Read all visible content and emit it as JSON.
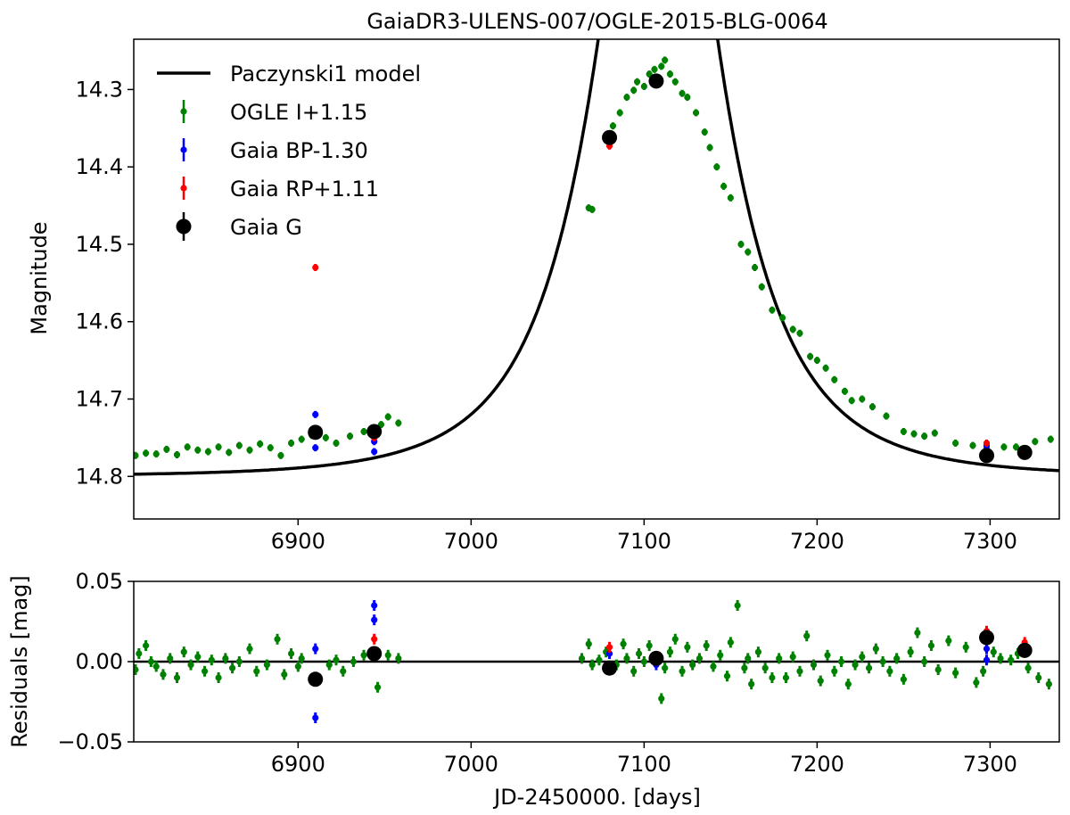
{
  "chart_data": [
    {
      "type": "scatter",
      "panel": "light-curve",
      "title": "GaiaDR3-ULENS-007/OGLE-2015-BLG-0064",
      "xlabel": "",
      "ylabel": "Magnitude",
      "xlim": [
        6805,
        7340
      ],
      "ylim": [
        14.855,
        14.235
      ],
      "y_inverted": true,
      "xticks": [
        6900,
        7000,
        7100,
        7200,
        7300
      ],
      "yticks": [
        14.3,
        14.4,
        14.5,
        14.6,
        14.7,
        14.8
      ],
      "xtick_labels": [
        "6900",
        "7000",
        "7100",
        "7200",
        "7300"
      ],
      "ytick_labels": [
        "14.3",
        "14.4",
        "14.5",
        "14.6",
        "14.7",
        "14.8"
      ],
      "legend_position": "upper-left",
      "grid": false,
      "model": {
        "name": "Paczynski1 model",
        "color": "#000000",
        "t0": 7108,
        "tE": 60,
        "u0": 0.395,
        "mbase": 14.8
      },
      "series": [
        {
          "name": "OGLE I+1.15",
          "color": "#008000",
          "marker": "small-dot-with-errorbar",
          "points": [
            [
              6806,
              14.773
            ],
            [
              6812,
              14.77
            ],
            [
              6818,
              14.771
            ],
            [
              6824,
              14.765
            ],
            [
              6830,
              14.772
            ],
            [
              6836,
              14.762
            ],
            [
              6842,
              14.766
            ],
            [
              6848,
              14.768
            ],
            [
              6854,
              14.762
            ],
            [
              6860,
              14.769
            ],
            [
              6866,
              14.76
            ],
            [
              6872,
              14.766
            ],
            [
              6878,
              14.758
            ],
            [
              6884,
              14.763
            ],
            [
              6890,
              14.773
            ],
            [
              6896,
              14.757
            ],
            [
              6902,
              14.752
            ],
            [
              6908,
              14.747
            ],
            [
              6916,
              14.75
            ],
            [
              6922,
              14.757
            ],
            [
              6930,
              14.748
            ],
            [
              6938,
              14.742
            ],
            [
              6948,
              14.733
            ],
            [
              6952,
              14.723
            ],
            [
              6958,
              14.731
            ],
            [
              7068,
              14.453
            ],
            [
              7070,
              14.455
            ],
            [
              7078,
              14.365
            ],
            [
              7082,
              14.347
            ],
            [
              7086,
              14.33
            ],
            [
              7090,
              14.31
            ],
            [
              7094,
              14.301
            ],
            [
              7096,
              14.29
            ],
            [
              7100,
              14.296
            ],
            [
              7103,
              14.28
            ],
            [
              7106,
              14.274
            ],
            [
              7110,
              14.27
            ],
            [
              7112,
              14.262
            ],
            [
              7115,
              14.28
            ],
            [
              7118,
              14.29
            ],
            [
              7122,
              14.305
            ],
            [
              7125,
              14.31
            ],
            [
              7130,
              14.33
            ],
            [
              7135,
              14.355
            ],
            [
              7138,
              14.375
            ],
            [
              7142,
              14.4
            ],
            [
              7146,
              14.425
            ],
            [
              7150,
              14.44
            ],
            [
              7156,
              14.5
            ],
            [
              7160,
              14.51
            ],
            [
              7164,
              14.53
            ],
            [
              7168,
              14.555
            ],
            [
              7174,
              14.585
            ],
            [
              7180,
              14.595
            ],
            [
              7186,
              14.61
            ],
            [
              7190,
              14.615
            ],
            [
              7196,
              14.645
            ],
            [
              7200,
              14.65
            ],
            [
              7205,
              14.66
            ],
            [
              7210,
              14.675
            ],
            [
              7216,
              14.69
            ],
            [
              7220,
              14.702
            ],
            [
              7226,
              14.7
            ],
            [
              7232,
              14.71
            ],
            [
              7240,
              14.722
            ],
            [
              7250,
              14.742
            ],
            [
              7256,
              14.745
            ],
            [
              7262,
              14.748
            ],
            [
              7268,
              14.744
            ],
            [
              7280,
              14.757
            ],
            [
              7290,
              14.76
            ],
            [
              7298,
              14.763
            ],
            [
              7308,
              14.762
            ],
            [
              7315,
              14.762
            ],
            [
              7326,
              14.755
            ],
            [
              7335,
              14.752
            ]
          ]
        },
        {
          "name": "Gaia BP-1.30",
          "color": "#0000ff",
          "marker": "small-dot-with-errorbar",
          "points": [
            [
              6910,
              14.72
            ],
            [
              6910,
              14.763
            ],
            [
              6944,
              14.755
            ],
            [
              6944,
              14.768
            ],
            [
              7080,
              14.365
            ],
            [
              7298,
              14.76
            ]
          ]
        },
        {
          "name": "Gaia RP+1.11",
          "color": "#ff0000",
          "marker": "small-dot-with-errorbar",
          "points": [
            [
              6910,
              14.53
            ],
            [
              6944,
              14.75
            ],
            [
              7080,
              14.373
            ],
            [
              7298,
              14.757
            ],
            [
              7320,
              14.768
            ]
          ]
        },
        {
          "name": "Gaia G",
          "color": "#000000",
          "marker": "large-dot-with-errorbar",
          "points": [
            [
              6910,
              14.743
            ],
            [
              6944,
              14.742
            ],
            [
              7080,
              14.362
            ],
            [
              7107,
              14.289
            ],
            [
              7298,
              14.773
            ],
            [
              7320,
              14.769
            ]
          ]
        }
      ]
    },
    {
      "type": "scatter",
      "panel": "residuals",
      "title": "",
      "xlabel": "JD-2450000. [days]",
      "ylabel": "Residuals [mag]",
      "xlim": [
        6805,
        7340
      ],
      "ylim": [
        -0.05,
        0.05
      ],
      "xticks": [
        6900,
        7000,
        7100,
        7200,
        7300
      ],
      "yticks": [
        -0.05,
        0.0,
        0.05
      ],
      "xtick_labels": [
        "6900",
        "7000",
        "7100",
        "7200",
        "7300"
      ],
      "ytick_labels": [
        "−0.05",
        "0.00",
        "0.05"
      ],
      "zero_line": 0,
      "grid": false,
      "series": [
        {
          "name": "OGLE I+1.15",
          "color": "#008000",
          "points": [
            [
              6806,
              -0.005
            ],
            [
              6808,
              0.005
            ],
            [
              6812,
              0.01
            ],
            [
              6815,
              0.0
            ],
            [
              6818,
              -0.003
            ],
            [
              6822,
              -0.008
            ],
            [
              6826,
              0.002
            ],
            [
              6830,
              -0.01
            ],
            [
              6834,
              0.006
            ],
            [
              6838,
              -0.002
            ],
            [
              6842,
              0.003
            ],
            [
              6846,
              -0.006
            ],
            [
              6850,
              0.001
            ],
            [
              6854,
              -0.01
            ],
            [
              6858,
              0.002
            ],
            [
              6862,
              -0.004
            ],
            [
              6866,
              0.0
            ],
            [
              6872,
              0.008
            ],
            [
              6876,
              -0.006
            ],
            [
              6882,
              -0.002
            ],
            [
              6888,
              0.014
            ],
            [
              6892,
              -0.008
            ],
            [
              6896,
              0.005
            ],
            [
              6900,
              -0.003
            ],
            [
              6902,
              0.002
            ],
            [
              6918,
              -0.002
            ],
            [
              6922,
              0.001
            ],
            [
              6926,
              -0.006
            ],
            [
              6932,
              0.0
            ],
            [
              6938,
              0.004
            ],
            [
              6946,
              -0.016
            ],
            [
              6952,
              0.004
            ],
            [
              6958,
              0.002
            ],
            [
              7064,
              0.002
            ],
            [
              7068,
              0.011
            ],
            [
              7070,
              -0.002
            ],
            [
              7074,
              0.001
            ],
            [
              7078,
              0.006
            ],
            [
              7084,
              -0.002
            ],
            [
              7088,
              0.011
            ],
            [
              7090,
              0.002
            ],
            [
              7094,
              -0.006
            ],
            [
              7097,
              0.005
            ],
            [
              7100,
              0.0
            ],
            [
              7103,
              0.01
            ],
            [
              7110,
              -0.023
            ],
            [
              7112,
              -0.004
            ],
            [
              7115,
              0.006
            ],
            [
              7118,
              0.014
            ],
            [
              7122,
              -0.006
            ],
            [
              7125,
              0.009
            ],
            [
              7128,
              -0.002
            ],
            [
              7132,
              0.002
            ],
            [
              7136,
              0.01
            ],
            [
              7140,
              -0.003
            ],
            [
              7144,
              0.004
            ],
            [
              7148,
              -0.009
            ],
            [
              7150,
              0.012
            ],
            [
              7154,
              0.035
            ],
            [
              7158,
              -0.004
            ],
            [
              7160,
              0.002
            ],
            [
              7162,
              -0.014
            ],
            [
              7166,
              0.006
            ],
            [
              7170,
              -0.004
            ],
            [
              7174,
              -0.01
            ],
            [
              7178,
              0.002
            ],
            [
              7182,
              -0.01
            ],
            [
              7186,
              0.003
            ],
            [
              7190,
              -0.006
            ],
            [
              7194,
              0.016
            ],
            [
              7198,
              -0.002
            ],
            [
              7202,
              -0.012
            ],
            [
              7206,
              0.004
            ],
            [
              7210,
              -0.006
            ],
            [
              7214,
              0.0
            ],
            [
              7218,
              -0.014
            ],
            [
              7222,
              -0.002
            ],
            [
              7226,
              0.003
            ],
            [
              7230,
              -0.004
            ],
            [
              7234,
              0.008
            ],
            [
              7238,
              0.0
            ],
            [
              7242,
              -0.006
            ],
            [
              7246,
              0.002
            ],
            [
              7250,
              -0.011
            ],
            [
              7254,
              0.006
            ],
            [
              7258,
              0.018
            ],
            [
              7262,
              0.0
            ],
            [
              7266,
              0.01
            ],
            [
              7270,
              -0.005
            ],
            [
              7276,
              0.013
            ],
            [
              7280,
              -0.007
            ],
            [
              7286,
              0.009
            ],
            [
              7292,
              -0.013
            ],
            [
              7296,
              -0.006
            ],
            [
              7302,
              0.006
            ],
            [
              7306,
              0.002
            ],
            [
              7312,
              0.001
            ],
            [
              7316,
              0.005
            ],
            [
              7322,
              -0.004
            ],
            [
              7328,
              -0.01
            ],
            [
              7334,
              -0.014
            ]
          ]
        },
        {
          "name": "Gaia BP-1.30",
          "color": "#0000ff",
          "points": [
            [
              6910,
              0.008
            ],
            [
              6910,
              -0.035
            ],
            [
              6944,
              0.035
            ],
            [
              6944,
              0.026
            ],
            [
              7080,
              0.005
            ],
            [
              7107,
              -0.002
            ],
            [
              7298,
              0.008
            ],
            [
              7298,
              0.001
            ]
          ]
        },
        {
          "name": "Gaia RP+1.11",
          "color": "#ff0000",
          "points": [
            [
              6944,
              0.014
            ],
            [
              7080,
              0.009
            ],
            [
              7298,
              0.019
            ],
            [
              7320,
              0.012
            ]
          ]
        },
        {
          "name": "Gaia G",
          "color": "#000000",
          "points": [
            [
              6910,
              -0.011
            ],
            [
              6944,
              0.005
            ],
            [
              7080,
              -0.004
            ],
            [
              7107,
              0.002
            ],
            [
              7298,
              0.015
            ],
            [
              7320,
              0.007
            ]
          ]
        }
      ]
    }
  ]
}
